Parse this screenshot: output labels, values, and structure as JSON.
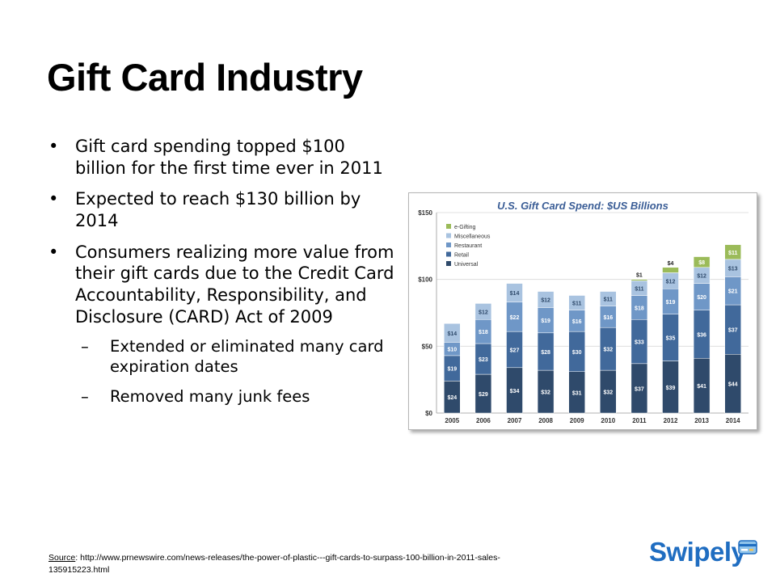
{
  "slide": {
    "title": "Gift Card Industry",
    "bullets": [
      "Gift card spending topped $100 billion for the first time ever in 2011",
      "Expected to reach $130 billion by 2014",
      "Consumers realizing more value from their gift cards due to the Credit Card Accountability, Responsibility, and Disclosure (CARD) Act of 2009"
    ],
    "sub_bullets": [
      "Extended or eliminated many card expiration dates",
      "Removed many junk fees"
    ],
    "bullet_glyph": "•",
    "dash_glyph": "–",
    "source_label": "Source",
    "source_text": ": http://www.prnewswire.com/news-releases/the-power-of-plastic---gift-cards-to-surpass-100-billion-in-2011-sales-135915223.html",
    "logo_text": "Swipely",
    "logo_icon": "credit-card-icon"
  },
  "colors": {
    "chart_title": "#3a5d96",
    "Universal": "#2f4a6b",
    "Retail": "#41699b",
    "Restaurant": "#6f97c7",
    "Miscellaneous": "#a9c3e0",
    "e-Gifting": "#9bbb59",
    "logo": "#1f6dc1"
  },
  "chart_data": {
    "type": "bar",
    "stacked": true,
    "title": "U.S. Gift Card Spend:  $US Billions",
    "categories": [
      "2005",
      "2006",
      "2007",
      "2008",
      "2009",
      "2010",
      "2011",
      "2012",
      "2013",
      "2014"
    ],
    "series": [
      {
        "name": "Universal",
        "values": [
          24,
          29,
          34,
          32,
          31,
          32,
          37,
          39,
          41,
          44
        ]
      },
      {
        "name": "Retail",
        "values": [
          19,
          23,
          27,
          28,
          30,
          32,
          33,
          35,
          36,
          37
        ]
      },
      {
        "name": "Restaurant",
        "values": [
          10,
          18,
          22,
          19,
          16,
          16,
          18,
          19,
          20,
          21
        ]
      },
      {
        "name": "Miscellaneous",
        "values": [
          14,
          12,
          14,
          12,
          11,
          11,
          11,
          12,
          12,
          13
        ]
      },
      {
        "name": "e-Gifting",
        "values": [
          0,
          0,
          0,
          0,
          0,
          0,
          1,
          4,
          8,
          11
        ]
      }
    ],
    "legend_order": [
      "e-Gifting",
      "Miscellaneous",
      "Restaurant",
      "Retail",
      "Universal"
    ],
    "legend_position": "top-left",
    "y_ticks": [
      "$0",
      "$50",
      "$100",
      "$150"
    ],
    "ylim": [
      0,
      150
    ],
    "grid": true
  }
}
